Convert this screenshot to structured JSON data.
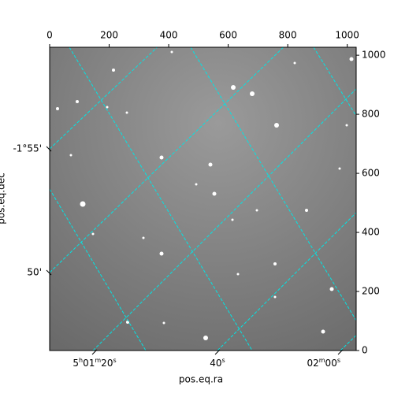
{
  "chart_data": {
    "type": "image",
    "xlabel": "pos.eq.ra",
    "ylabel": "pos.eq.dec",
    "xlim": [
      0,
      1030
    ],
    "xticks": [
      0,
      200,
      400,
      600,
      800,
      1000
    ],
    "ylim": [
      0,
      1027
    ],
    "yticks": [
      0,
      200,
      400,
      600,
      800,
      1000
    ],
    "ra_tick_labels": [
      "5h01m20s",
      "40s",
      "02m00s"
    ],
    "dec_tick_labels": [
      "-1°55'",
      "50'"
    ],
    "grid_color": "#00e5e5"
  }
}
